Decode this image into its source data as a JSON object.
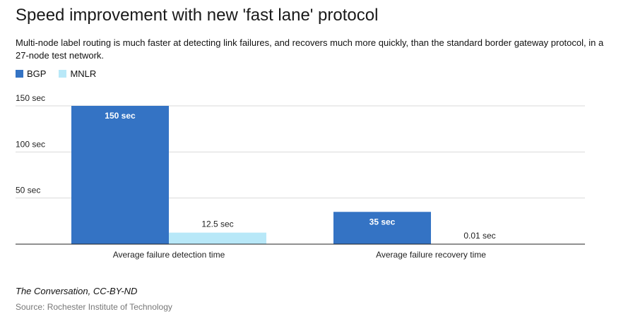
{
  "header": {
    "title": "Speed improvement with new 'fast lane' protocol",
    "subtitle": "Multi-node label routing is much faster at detecting link failures, and recovers much more quickly, than the standard border gateway protocol, in a 27-node test network."
  },
  "legend": [
    {
      "label": "BGP",
      "color": "#3473c4"
    },
    {
      "label": "MNLR",
      "color": "#b8e8f8"
    }
  ],
  "chart_data": {
    "type": "bar",
    "categories": [
      "Average failure detection time",
      "Average failure recovery time"
    ],
    "series": [
      {
        "name": "BGP",
        "values": [
          150,
          35
        ],
        "labels": [
          "150 sec",
          "35 sec"
        ],
        "color": "#3473c4"
      },
      {
        "name": "MNLR",
        "values": [
          12.5,
          0.01
        ],
        "labels": [
          "12.5 sec",
          "0.01 sec"
        ],
        "color": "#b8e8f8"
      }
    ],
    "yticks": [
      50,
      100,
      150
    ],
    "ytick_labels": [
      "50 sec",
      "100 sec",
      "150 sec"
    ],
    "ylim": [
      0,
      150
    ],
    "grid": true,
    "legend_position": "top-left"
  },
  "footer": {
    "credit": "The Conversation, CC-BY-ND",
    "source": "Source: Rochester Institute of Technology"
  }
}
